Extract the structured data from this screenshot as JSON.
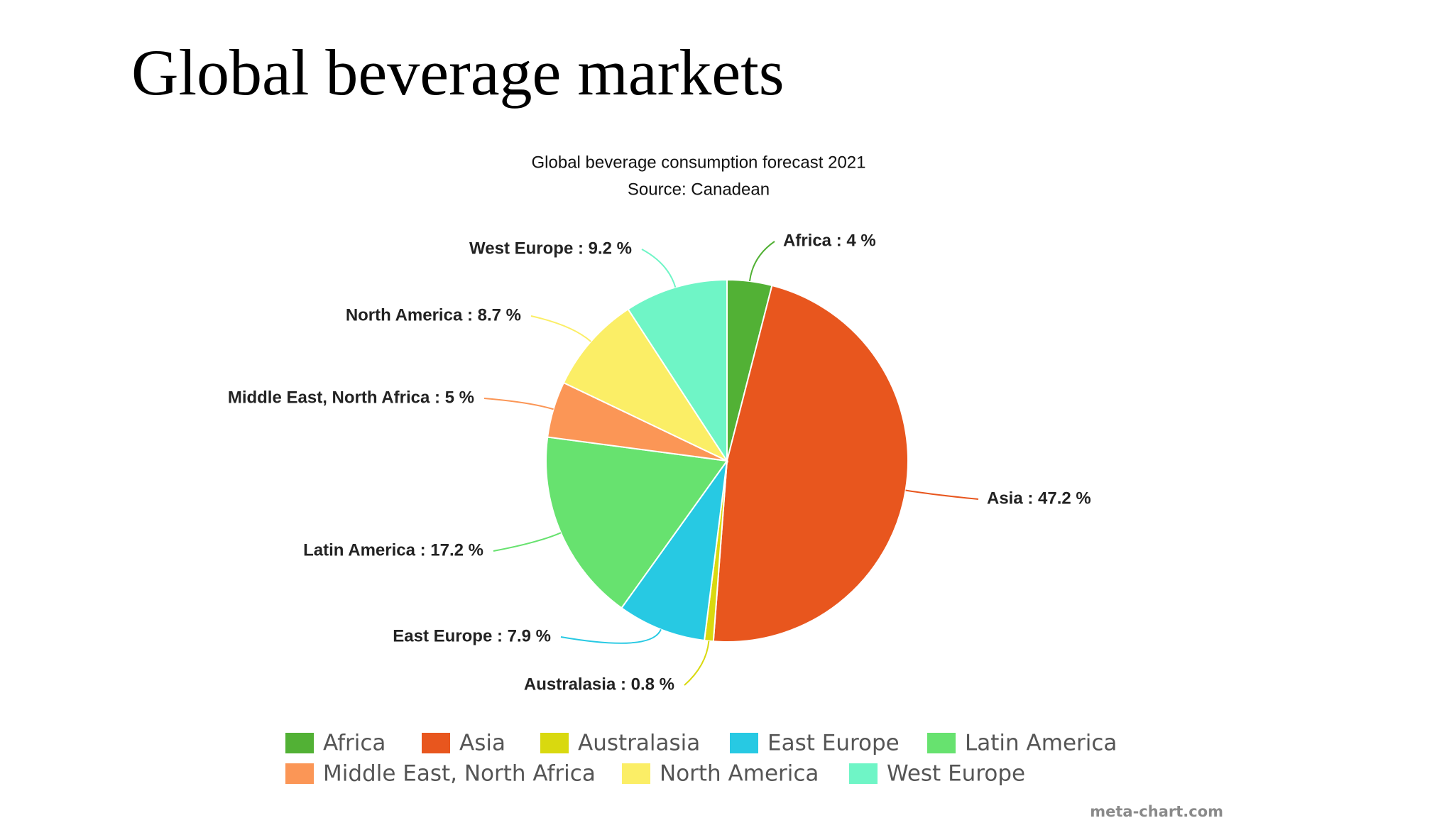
{
  "slide_title": "Global beverage markets",
  "chart_data": {
    "type": "pie",
    "title": "Global beverage consumption forecast 2021",
    "subtitle": "Source: Canadean",
    "categories": [
      "Africa",
      "Asia",
      "Australasia",
      "East Europe",
      "Latin America",
      "Middle East, North Africa",
      "North America",
      "West Europe"
    ],
    "values": [
      4,
      47.2,
      0.8,
      7.9,
      17.2,
      5,
      8.7,
      9.2
    ],
    "value_labels": [
      "Africa : 4 %",
      "Asia : 47.2 %",
      "Australasia : 0.8 %",
      "East Europe : 7.9 %",
      "Latin America : 17.2 %",
      "Middle East, North Africa : 5 %",
      "North America : 8.7 %",
      "West Europe : 9.2 %"
    ],
    "colors": [
      "#52b135",
      "#e8561e",
      "#d9d90f",
      "#27c9e3",
      "#67e26f",
      "#fb9656",
      "#fbee66",
      "#6ff5c6"
    ],
    "legend": "bottom",
    "annotation": "meta-chart.com"
  }
}
